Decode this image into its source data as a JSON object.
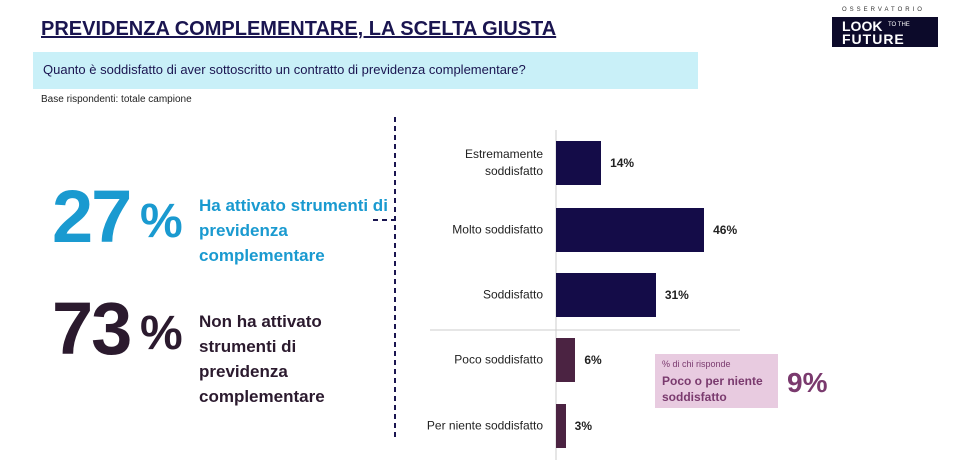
{
  "header": {
    "title": "PREVIDENZA COMPLEMENTARE, LA SCELTA GIUSTA",
    "question": "Quanto è soddisfatto di aver sottoscritto un contratto di previdenza complementare?",
    "base": "Base rispondenti: totale campione"
  },
  "logo": {
    "top": "OSSERVATORIO",
    "look": "LOOK",
    "small": "TO THE",
    "future": "FUTURE"
  },
  "stats": [
    {
      "number": "27",
      "unit": "%",
      "text": "Ha attivato strumenti di previdenza complementare"
    },
    {
      "number": "73",
      "unit": "%",
      "text": "Non ha attivato strumenti di previdenza complementare"
    }
  ],
  "callout": {
    "note": "% di chi risponde",
    "label": "Poco o per niente soddisfatto",
    "value": "9%"
  },
  "chart_data": {
    "type": "bar",
    "orientation": "horizontal",
    "categories": [
      "Estremamente soddisfatto",
      "Molto soddisfatto",
      "Soddisfatto",
      "Poco soddisfatto",
      "Per niente soddisfatto"
    ],
    "values": [
      14,
      46,
      31,
      6,
      3
    ],
    "value_labels": [
      "14%",
      "46%",
      "31%",
      "6%",
      "3%"
    ],
    "colors": [
      "#140c48",
      "#140c48",
      "#140c48",
      "#4b2342",
      "#4b2342"
    ]
  }
}
